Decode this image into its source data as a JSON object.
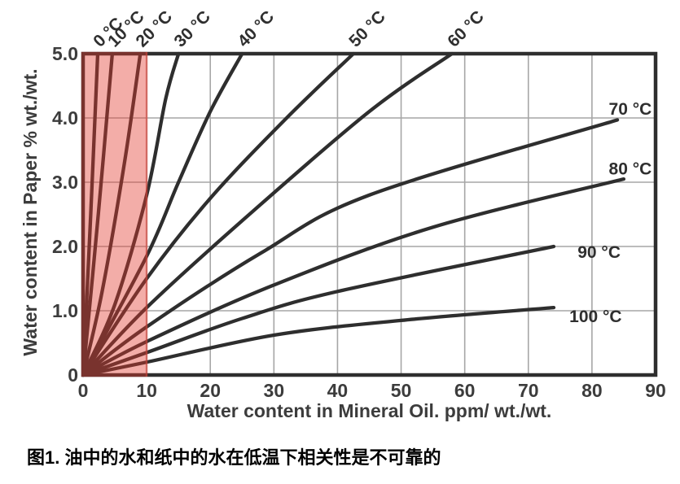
{
  "figure": {
    "caption": "图1. 油中的水和纸中的水在低温下相关性是不可靠的"
  },
  "chart_data": {
    "type": "line",
    "title": "",
    "xlabel": "Water content in Mineral Oil. ppm/ wt./wt.",
    "ylabel": "Water content in Paper % wt./wt.",
    "xlim": [
      0,
      90
    ],
    "ylim": [
      0,
      5
    ],
    "x_ticks": [
      0,
      10,
      20,
      30,
      40,
      50,
      60,
      70,
      80,
      90
    ],
    "x_tick_labels": [
      "0",
      "10",
      "20",
      "30",
      "40",
      "50",
      "60",
      "70",
      "80",
      "90"
    ],
    "y_ticks": [
      0,
      1,
      2,
      3,
      4,
      5
    ],
    "y_tick_labels": [
      "0",
      "1.0",
      "2.0",
      "3.0",
      "4.0",
      "5.0"
    ],
    "grid": true,
    "legend_position": "curve labels along top and right edges",
    "highlight_region": {
      "x_range": [
        0,
        10
      ],
      "fill": "#E23B30",
      "fill_opacity": 0.42,
      "edge_color": "#E0463A"
    },
    "colors": {
      "curve": "#2E2E2E",
      "frame": "#2E2E2E",
      "grid": "#A6A6A6",
      "text": "#3C3C3C"
    },
    "series": [
      {
        "name": "0 °C",
        "temp_c": 0,
        "label_position": "top",
        "label_at": [
          2.3,
          5
        ],
        "points": [
          [
            0,
            0
          ],
          [
            1.2,
            2.5
          ],
          [
            2.3,
            5.0
          ]
        ]
      },
      {
        "name": "10 °C",
        "temp_c": 10,
        "label_position": "top",
        "label_at": [
          4.6,
          5
        ],
        "points": [
          [
            0,
            0
          ],
          [
            2.4,
            2.5
          ],
          [
            4.6,
            5.0
          ]
        ]
      },
      {
        "name": "20 °C",
        "temp_c": 20,
        "label_position": "top",
        "label_at": [
          9.0,
          5
        ],
        "points": [
          [
            0,
            0
          ],
          [
            3.0,
            1.3
          ],
          [
            6.5,
            3.3
          ],
          [
            9.0,
            5.0
          ]
        ]
      },
      {
        "name": "30 °C",
        "temp_c": 30,
        "label_position": "top",
        "label_at": [
          15.0,
          5
        ],
        "points": [
          [
            0,
            0
          ],
          [
            5.0,
            1.1
          ],
          [
            10.0,
            2.8
          ],
          [
            13.0,
            4.3
          ],
          [
            15.0,
            5.0
          ]
        ]
      },
      {
        "name": "40 °C",
        "temp_c": 40,
        "label_position": "top",
        "label_at": [
          25.0,
          5
        ],
        "points": [
          [
            0,
            0
          ],
          [
            10.0,
            1.85
          ],
          [
            15.0,
            3.0
          ],
          [
            20.0,
            4.1
          ],
          [
            25.0,
            5.0
          ]
        ]
      },
      {
        "name": "50 °C",
        "temp_c": 50,
        "label_position": "top",
        "label_at": [
          42.5,
          5
        ],
        "points": [
          [
            0,
            0
          ],
          [
            10.0,
            1.5
          ],
          [
            20.0,
            2.75
          ],
          [
            32.0,
            4.0
          ],
          [
            42.5,
            5.0
          ]
        ]
      },
      {
        "name": "60 °C",
        "temp_c": 60,
        "label_position": "top",
        "label_at": [
          58.0,
          5
        ],
        "points": [
          [
            0,
            0
          ],
          [
            10.0,
            1.05
          ],
          [
            25.0,
            2.4
          ],
          [
            45.0,
            4.1
          ],
          [
            58.0,
            5.0
          ]
        ]
      },
      {
        "name": "70 °C",
        "temp_c": 70,
        "label_position": "right",
        "label_at": [
          89.4,
          4.05
        ],
        "points": [
          [
            0,
            0
          ],
          [
            10.0,
            0.75
          ],
          [
            28.0,
            1.9
          ],
          [
            45.0,
            2.8
          ],
          [
            84.0,
            3.97
          ]
        ]
      },
      {
        "name": "80 °C",
        "temp_c": 80,
        "label_position": "right",
        "label_at": [
          89.4,
          3.12
        ],
        "points": [
          [
            0,
            0
          ],
          [
            10.0,
            0.52
          ],
          [
            30.0,
            1.4
          ],
          [
            55.0,
            2.3
          ],
          [
            85.0,
            3.05
          ]
        ]
      },
      {
        "name": "90 °C",
        "temp_c": 90,
        "label_position": "right",
        "label_at": [
          84.5,
          1.82
        ],
        "points": [
          [
            0,
            0
          ],
          [
            10.0,
            0.35
          ],
          [
            25.0,
            0.88
          ],
          [
            40.0,
            1.3
          ],
          [
            74.0,
            2.0
          ]
        ]
      },
      {
        "name": "100 °C",
        "temp_c": 100,
        "label_position": "right",
        "label_at": [
          84.7,
          0.82
        ],
        "points": [
          [
            0,
            0
          ],
          [
            10.0,
            0.2
          ],
          [
            30.0,
            0.62
          ],
          [
            50.0,
            0.85
          ],
          [
            74.0,
            1.05
          ]
        ]
      }
    ]
  }
}
